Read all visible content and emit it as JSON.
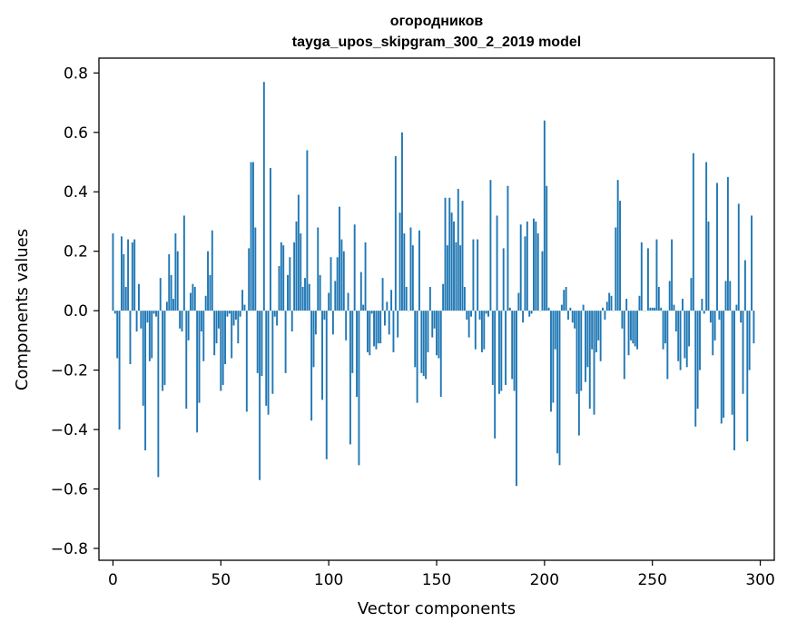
{
  "chart_data": {
    "type": "bar",
    "title": "огородников",
    "subtitle": "tayga_upos_skipgram_300_2_2019 model",
    "xlabel": "Vector components",
    "ylabel": "Components values",
    "xlim": [
      -6.5,
      306.5
    ],
    "ylim": [
      -0.84,
      0.85
    ],
    "xticks": [
      0,
      50,
      100,
      150,
      200,
      250,
      300
    ],
    "xtick_labels": [
      "0",
      "50",
      "100",
      "150",
      "200",
      "250",
      "300"
    ],
    "yticks": [
      -0.8,
      -0.6,
      -0.4,
      -0.2,
      0.0,
      0.2,
      0.4,
      0.6,
      0.8
    ],
    "ytick_labels": [
      "−0.8",
      "−0.6",
      "−0.4",
      "−0.2",
      "0.0",
      "0.2",
      "0.4",
      "0.6",
      "0.8"
    ],
    "grid": false,
    "bar_color": "#1f77b4",
    "values": [
      0.26,
      -0.01,
      -0.16,
      -0.4,
      0.25,
      0.19,
      0.08,
      0.24,
      -0.18,
      0.23,
      0.24,
      -0.07,
      0.09,
      -0.06,
      -0.32,
      -0.47,
      -0.04,
      -0.17,
      -0.16,
      -0.01,
      -0.02,
      -0.56,
      0.11,
      -0.27,
      -0.25,
      0.03,
      0.19,
      0.12,
      0.04,
      0.26,
      0.2,
      -0.06,
      -0.07,
      0.32,
      -0.33,
      -0.1,
      0.06,
      0.09,
      0.08,
      -0.41,
      -0.31,
      -0.07,
      -0.17,
      0.05,
      0.2,
      0.12,
      0.27,
      -0.15,
      -0.11,
      -0.06,
      -0.27,
      -0.25,
      -0.18,
      -0.02,
      -0.01,
      -0.16,
      -0.05,
      -0.03,
      -0.11,
      -0.02,
      0.07,
      0.02,
      -0.34,
      0.21,
      0.5,
      0.5,
      0.28,
      -0.21,
      -0.57,
      -0.22,
      0.77,
      -0.32,
      -0.35,
      0.48,
      -0.28,
      -0.02,
      -0.05,
      0.15,
      0.23,
      0.22,
      -0.21,
      0.12,
      0.18,
      -0.07,
      0.23,
      0.3,
      0.39,
      0.26,
      0.08,
      0.11,
      0.54,
      0.09,
      -0.37,
      -0.19,
      -0.08,
      0.28,
      0.12,
      -0.3,
      -0.03,
      -0.5,
      0.06,
      0.18,
      -0.08,
      0.1,
      0.18,
      0.35,
      0.24,
      0.2,
      -0.1,
      0.06,
      -0.45,
      -0.21,
      0.29,
      -0.29,
      -0.52,
      0.13,
      0.02,
      0.23,
      -0.14,
      -0.15,
      -0.01,
      -0.12,
      -0.13,
      -0.11,
      -0.11,
      0.11,
      -0.05,
      0.03,
      -0.08,
      0.07,
      -0.14,
      0.52,
      -0.09,
      0.33,
      0.6,
      0.26,
      0.08,
      0.0,
      0.28,
      0.22,
      -0.19,
      -0.31,
      0.27,
      -0.21,
      -0.22,
      -0.23,
      -0.14,
      0.08,
      -0.09,
      -0.06,
      -0.15,
      -0.16,
      -0.29,
      0.09,
      0.38,
      0.22,
      0.38,
      0.33,
      0.3,
      0.23,
      0.41,
      0.22,
      0.37,
      0.08,
      -0.03,
      -0.09,
      -0.02,
      0.24,
      -0.13,
      0.24,
      -0.03,
      -0.14,
      -0.13,
      -0.01,
      -0.02,
      0.44,
      -0.25,
      -0.43,
      0.32,
      -0.28,
      -0.27,
      0.21,
      -0.25,
      0.42,
      0.01,
      -0.23,
      -0.27,
      -0.59,
      0.06,
      0.29,
      -0.04,
      0.25,
      0.3,
      -0.02,
      -0.01,
      0.31,
      0.3,
      0.26,
      0.0,
      0.2,
      0.64,
      0.42,
      0.01,
      -0.34,
      -0.31,
      -0.13,
      -0.48,
      -0.52,
      0.02,
      0.07,
      0.08,
      -0.03,
      0.01,
      -0.04,
      -0.06,
      -0.28,
      -0.42,
      -0.27,
      0.02,
      -0.24,
      -0.19,
      -0.33,
      -0.13,
      -0.35,
      -0.14,
      -0.1,
      -0.17,
      0.01,
      -0.03,
      0.03,
      0.06,
      0.05,
      0.0,
      0.28,
      0.44,
      0.37,
      -0.06,
      -0.23,
      0.04,
      -0.15,
      -0.1,
      -0.11,
      -0.12,
      -0.13,
      0.05,
      0.23,
      0.0,
      0.0,
      0.21,
      0.01,
      0.01,
      0.01,
      0.24,
      0.08,
      0.01,
      -0.13,
      -0.11,
      -0.23,
      0.1,
      0.24,
      0.02,
      -0.07,
      -0.17,
      -0.2,
      0.04,
      -0.16,
      -0.19,
      -0.12,
      0.11,
      0.53,
      -0.39,
      -0.33,
      -0.2,
      0.04,
      -0.01,
      0.5,
      0.3,
      -0.04,
      -0.15,
      -0.1,
      0.43,
      -0.03,
      -0.38,
      -0.36,
      0.1,
      0.45,
      0.1,
      -0.35,
      -0.47,
      0.02,
      0.36,
      -0.04,
      -0.28,
      0.17,
      -0.44,
      -0.2,
      0.32,
      -0.11
    ]
  }
}
